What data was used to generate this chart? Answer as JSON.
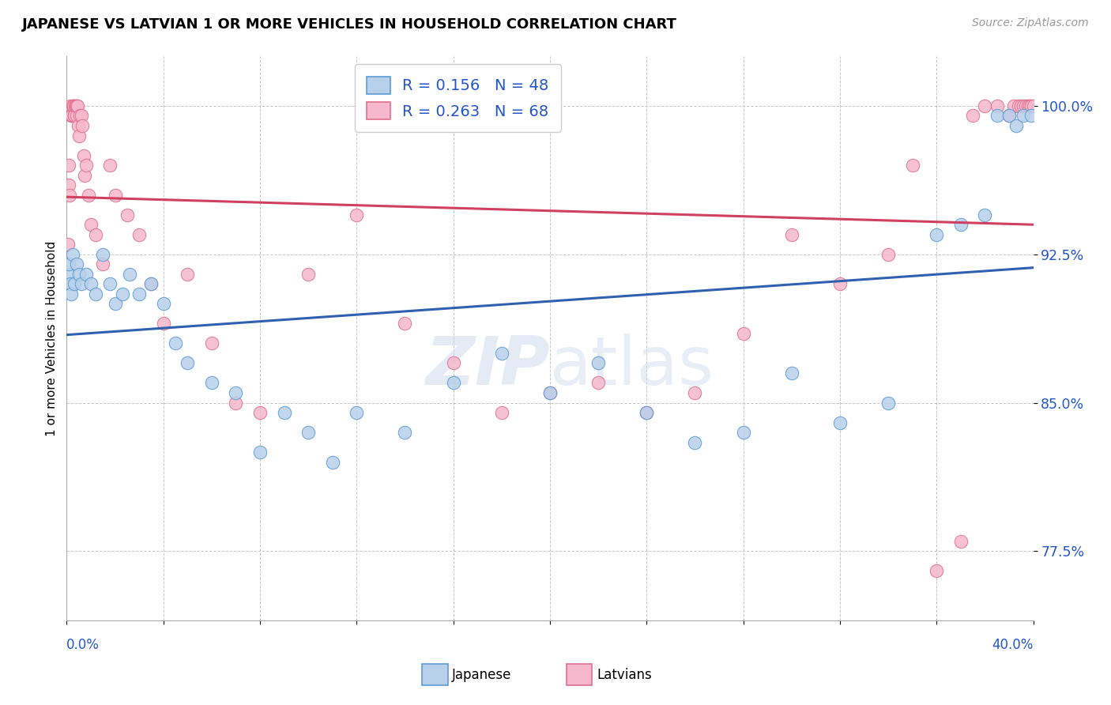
{
  "title": "JAPANESE VS LATVIAN 1 OR MORE VEHICLES IN HOUSEHOLD CORRELATION CHART",
  "source": "Source: ZipAtlas.com",
  "ylabel": "1 or more Vehicles in Household",
  "yticks": [
    77.5,
    85.0,
    92.5,
    100.0
  ],
  "ytick_labels": [
    "77.5%",
    "85.0%",
    "92.5%",
    "100.0%"
  ],
  "xmin": 0.0,
  "xmax": 40.0,
  "ymin": 74.0,
  "ymax": 102.5,
  "color_japanese_fill": "#b8d0ea",
  "color_japanese_edge": "#5b9bd5",
  "color_latvians_fill": "#f5b8cc",
  "color_latvians_edge": "#e07090",
  "color_japanese_line": "#3060b0",
  "color_latvians_line": "#d04060",
  "text_blue": "#2255cc",
  "legend_label_jp": "R = 0.156   N = 48",
  "legend_label_lv": "R = 0.263   N = 68",
  "japanese_x": [
    0.05,
    0.1,
    0.15,
    0.2,
    0.25,
    0.3,
    0.4,
    0.5,
    0.6,
    0.8,
    1.0,
    1.2,
    1.5,
    1.8,
    2.0,
    2.3,
    2.6,
    3.0,
    3.5,
    4.0,
    4.5,
    5.0,
    6.0,
    7.0,
    8.0,
    9.0,
    10.0,
    11.0,
    12.0,
    14.0,
    16.0,
    18.0,
    20.0,
    22.0,
    24.0,
    26.0,
    28.0,
    30.0,
    32.0,
    34.0,
    36.0,
    37.0,
    38.0,
    38.5,
    39.0,
    39.3,
    39.6,
    39.9
  ],
  "japanese_y": [
    91.5,
    92.0,
    91.0,
    90.5,
    92.5,
    91.0,
    92.0,
    91.5,
    91.0,
    91.5,
    91.0,
    90.5,
    92.5,
    91.0,
    90.0,
    90.5,
    91.5,
    90.5,
    91.0,
    90.0,
    88.0,
    87.0,
    86.0,
    85.5,
    82.5,
    84.5,
    83.5,
    82.0,
    84.5,
    83.5,
    86.0,
    87.5,
    85.5,
    87.0,
    84.5,
    83.0,
    83.5,
    86.5,
    84.0,
    85.0,
    93.5,
    94.0,
    94.5,
    99.5,
    99.5,
    99.0,
    99.5,
    99.5
  ],
  "latvians_x": [
    0.05,
    0.08,
    0.1,
    0.12,
    0.15,
    0.18,
    0.2,
    0.22,
    0.25,
    0.28,
    0.3,
    0.33,
    0.35,
    0.38,
    0.4,
    0.42,
    0.45,
    0.48,
    0.5,
    0.55,
    0.6,
    0.65,
    0.7,
    0.75,
    0.8,
    0.9,
    1.0,
    1.2,
    1.5,
    1.8,
    2.0,
    2.5,
    3.0,
    3.5,
    4.0,
    5.0,
    6.0,
    7.0,
    8.0,
    10.0,
    12.0,
    14.0,
    16.0,
    18.0,
    20.0,
    22.0,
    24.0,
    26.0,
    28.0,
    30.0,
    32.0,
    34.0,
    35.0,
    36.0,
    37.0,
    37.5,
    38.0,
    38.5,
    39.0,
    39.2,
    39.4,
    39.5,
    39.6,
    39.7,
    39.8,
    39.85,
    39.9,
    40.0
  ],
  "latvians_y": [
    93.0,
    96.0,
    97.0,
    95.5,
    100.0,
    99.5,
    99.5,
    99.5,
    100.0,
    100.0,
    99.5,
    99.5,
    100.0,
    100.0,
    99.5,
    100.0,
    100.0,
    99.0,
    98.5,
    99.5,
    99.5,
    99.0,
    97.5,
    96.5,
    97.0,
    95.5,
    94.0,
    93.5,
    92.0,
    97.0,
    95.5,
    94.5,
    93.5,
    91.0,
    89.0,
    91.5,
    88.0,
    85.0,
    84.5,
    91.5,
    94.5,
    89.0,
    87.0,
    84.5,
    85.5,
    86.0,
    84.5,
    85.5,
    88.5,
    93.5,
    91.0,
    92.5,
    97.0,
    76.5,
    78.0,
    99.5,
    100.0,
    100.0,
    99.5,
    100.0,
    100.0,
    100.0,
    100.0,
    100.0,
    100.0,
    100.0,
    100.0,
    100.0
  ]
}
